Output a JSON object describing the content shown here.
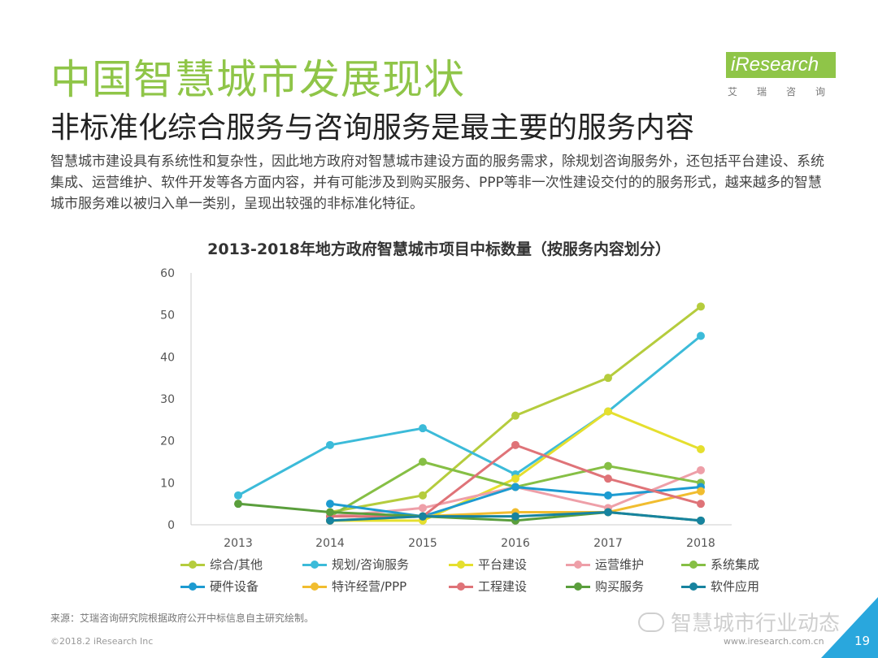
{
  "header": {
    "title": "中国智慧城市发展现状",
    "subtitle": "非标准化综合服务与咨询服务是最主要的服务内容",
    "description": "智慧城市建设具有系统性和复杂性，因此地方政府对智慧城市建设方面的服务需求，除规划咨询服务外，还包括平台建设、系统集成、运营维护、软件开发等各方面内容，并有可能涉及到购买服务、PPP等非一次性建设交付的的服务形式，越来越多的智慧城市服务难以被归入单一类别，呈现出较强的非标准化特征。"
  },
  "logo": {
    "name": "iResearch",
    "sub": "艾瑞咨询"
  },
  "chart_data": {
    "type": "line",
    "title": "2013-2018年地方政府智慧城市项目中标数量（按服务内容划分）",
    "categories": [
      "2013",
      "2014",
      "2015",
      "2016",
      "2017",
      "2018"
    ],
    "ylim": [
      0,
      60
    ],
    "yticks": [
      0,
      10,
      20,
      30,
      40,
      50,
      60
    ],
    "series": [
      {
        "name": "综合/其他",
        "color": "#b5cc3d",
        "values": [
          null,
          3,
          7,
          26,
          35,
          52
        ]
      },
      {
        "name": "规划/咨询服务",
        "color": "#3cbbd9",
        "values": [
          7,
          19,
          23,
          12,
          27,
          45
        ]
      },
      {
        "name": "平台建设",
        "color": "#e5df2e",
        "values": [
          null,
          1,
          1,
          11,
          27,
          18
        ]
      },
      {
        "name": "运营维护",
        "color": "#ee9fa8",
        "values": [
          null,
          2,
          4,
          9,
          4,
          13
        ]
      },
      {
        "name": "系统集成",
        "color": "#86bf45",
        "values": [
          null,
          2,
          15,
          9,
          14,
          10
        ]
      },
      {
        "name": "硬件设备",
        "color": "#1d9bd1",
        "values": [
          null,
          5,
          2,
          9,
          7,
          9
        ]
      },
      {
        "name": "特许经营/PPP",
        "color": "#f1bd2f",
        "values": [
          null,
          1,
          2,
          3,
          3,
          8
        ]
      },
      {
        "name": "工程建设",
        "color": "#df7378",
        "values": [
          null,
          2,
          2,
          19,
          11,
          5
        ]
      },
      {
        "name": "购买服务",
        "color": "#5a9e3c",
        "values": [
          5,
          3,
          2,
          1,
          3,
          1
        ]
      },
      {
        "name": "软件应用",
        "color": "#17839f",
        "values": [
          null,
          1,
          2,
          2,
          3,
          1
        ]
      }
    ]
  },
  "footer": {
    "source": "来源：艾瑞咨询研究院根据政府公开中标信息自主研究绘制。",
    "copyright": "©2018.2 iResearch Inc",
    "website": "www.iresearch.com.cn",
    "page": "19",
    "watermark": "智慧城市行业动态"
  }
}
